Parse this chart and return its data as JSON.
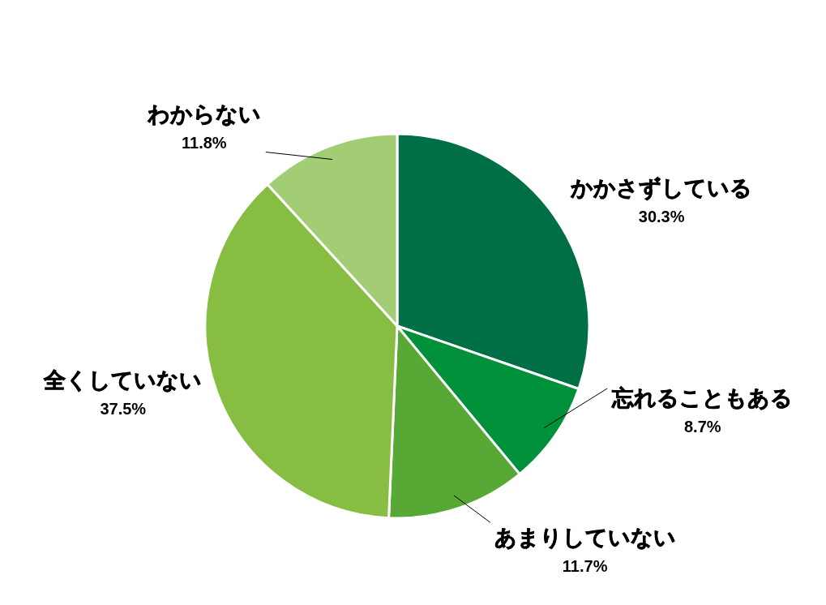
{
  "chart_data": {
    "type": "pie",
    "categories": [
      "かかさずしている",
      "忘れることもある",
      "あまりしていない",
      "全くしていない",
      "わからない"
    ],
    "values": [
      30.3,
      8.7,
      11.7,
      37.5,
      11.8
    ],
    "colors": [
      "#006f45",
      "#00913a",
      "#57a834",
      "#87bd43",
      "#a3cd74"
    ],
    "value_labels": [
      "30.3%",
      "8.7%",
      "11.7%",
      "37.5%",
      "11.8%"
    ]
  }
}
